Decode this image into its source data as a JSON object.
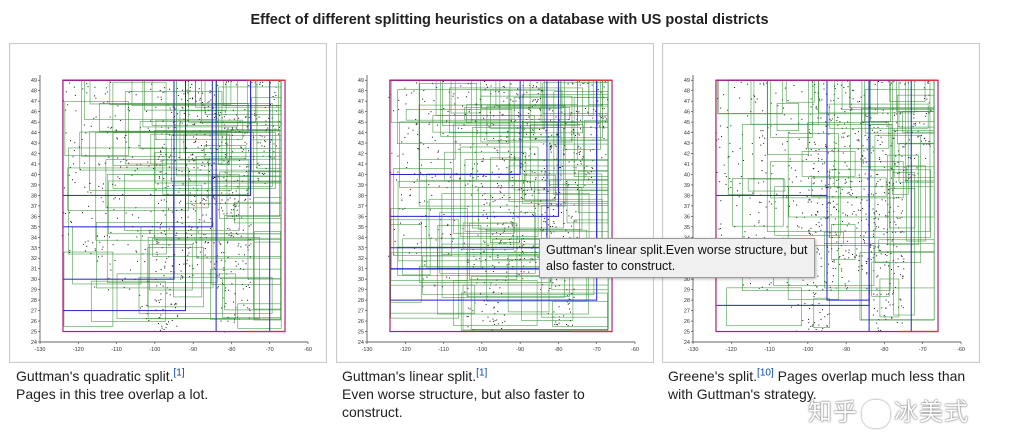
{
  "page": {
    "title": "Effect of different splitting heuristics on a database with US postal districts"
  },
  "axes": {
    "y_ticks": [
      "49",
      "48",
      "47",
      "46",
      "45",
      "44",
      "43",
      "42",
      "41",
      "40",
      "39",
      "38",
      "37",
      "36",
      "35",
      "34",
      "33",
      "32",
      "31",
      "30",
      "29",
      "28",
      "27",
      "26",
      "25",
      "24"
    ],
    "x_ticks": [
      "-130",
      "-120",
      "-110",
      "-100",
      "-90",
      "-80",
      "-70",
      "-60"
    ]
  },
  "panels": [
    {
      "caption_title": "Guttman's quadratic split.",
      "ref": "[1]",
      "caption_body": "Pages in this tree overlap a lot."
    },
    {
      "caption_title": "Guttman's linear split.",
      "ref": "[1]",
      "caption_body": "Even worse structure, but also faster to construct."
    },
    {
      "caption_title": "Greene's split.",
      "ref": "[10]",
      "caption_body": "Pages overlap much less than with Guttman's strategy."
    }
  ],
  "tooltip": {
    "text": "Guttman's linear split.Even worse structure, but also faster to construct."
  },
  "watermark": {
    "left": "知乎",
    "right": "冰美式"
  },
  "colors": {
    "leaf_pages": "#2e8b2e",
    "upper_pages": "#2222cc",
    "root_page": "#b0207a",
    "points": "#111111"
  }
}
